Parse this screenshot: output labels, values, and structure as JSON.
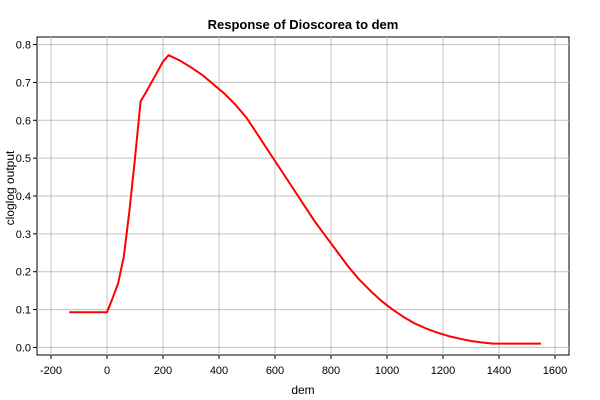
{
  "chart_data": {
    "type": "line",
    "title": "Response of Dioscorea to dem",
    "xlabel": "dem",
    "ylabel": "cloglog output",
    "xlim": [
      -250,
      1650
    ],
    "ylim": [
      -0.02,
      0.82
    ],
    "xticks": [
      -200,
      0,
      200,
      400,
      600,
      800,
      1000,
      1200,
      1400,
      1600
    ],
    "yticks": [
      0.0,
      0.1,
      0.2,
      0.3,
      0.4,
      0.5,
      0.6,
      0.7,
      0.8
    ],
    "xtick_labels": [
      "-200",
      "0",
      "200",
      "400",
      "600",
      "800",
      "1000",
      "1200",
      "1400",
      "1600"
    ],
    "ytick_labels": [
      "0.0",
      "0.1",
      "0.2",
      "0.3",
      "0.4",
      "0.5",
      "0.6",
      "0.7",
      "0.8"
    ],
    "grid": true,
    "series": [
      {
        "color": "#ff0000",
        "x": [
          -135,
          0,
          20,
          40,
          60,
          80,
          100,
          120,
          140,
          170,
          200,
          220,
          260,
          300,
          340,
          380,
          420,
          460,
          500,
          540,
          580,
          620,
          660,
          700,
          740,
          780,
          820,
          860,
          900,
          940,
          980,
          1020,
          1060,
          1100,
          1140,
          1180,
          1220,
          1260,
          1300,
          1340,
          1380,
          1400,
          1450,
          1500,
          1550
        ],
        "y": [
          0.093,
          0.093,
          0.13,
          0.17,
          0.24,
          0.36,
          0.5,
          0.65,
          0.675,
          0.715,
          0.755,
          0.772,
          0.758,
          0.74,
          0.72,
          0.695,
          0.67,
          0.64,
          0.605,
          0.56,
          0.515,
          0.47,
          0.425,
          0.38,
          0.335,
          0.295,
          0.255,
          0.215,
          0.18,
          0.15,
          0.123,
          0.1,
          0.08,
          0.063,
          0.05,
          0.039,
          0.03,
          0.023,
          0.017,
          0.013,
          0.01,
          0.01,
          0.01,
          0.01,
          0.01
        ]
      }
    ]
  }
}
